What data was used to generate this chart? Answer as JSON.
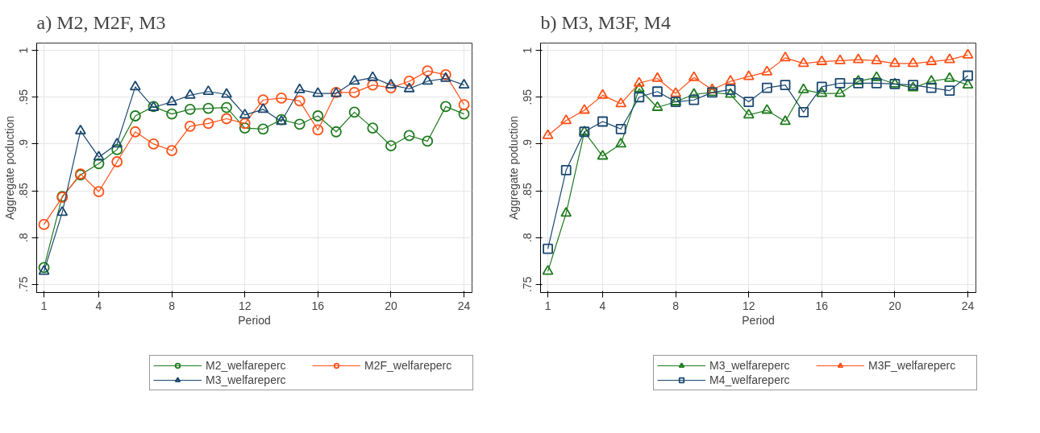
{
  "chart_data": [
    {
      "type": "line",
      "title": "a) M2, M2F, M3",
      "xlabel": "Period",
      "ylabel": "Aggregate poduction",
      "x": [
        1,
        2,
        3,
        4,
        5,
        6,
        7,
        8,
        9,
        10,
        11,
        12,
        13,
        14,
        15,
        16,
        17,
        18,
        19,
        20,
        21,
        22,
        23,
        24
      ],
      "xlim": [
        0.6,
        24.44
      ],
      "xticks": [
        1,
        4,
        8,
        12,
        16,
        20,
        24
      ],
      "ylim": [
        0.7413,
        1.0078
      ],
      "yticks": [
        {
          "value": 0.75,
          "label": ".75"
        },
        {
          "value": 0.8,
          "label": ".8"
        },
        {
          "value": 0.85,
          "label": ".85"
        },
        {
          "value": 0.9,
          "label": ".9"
        },
        {
          "value": 0.95,
          "label": ".95"
        },
        {
          "value": 1,
          "label": "1"
        }
      ],
      "grid": true,
      "legend": "bottom",
      "series": [
        {
          "name": "M2_welfareperc",
          "color": "#1e7b1e",
          "marker": "circle",
          "values": [
            0.768,
            0.844,
            0.867,
            0.879,
            0.894,
            0.93,
            0.94,
            0.932,
            0.937,
            0.938,
            0.939,
            0.917,
            0.916,
            0.926,
            0.921,
            0.93,
            0.913,
            0.934,
            0.917,
            0.898,
            0.909,
            0.903,
            0.94,
            0.932
          ]
        },
        {
          "name": "M2F_welfareperc",
          "color": "#ff4f14",
          "marker": "circle",
          "values": [
            0.814,
            0.843,
            0.868,
            0.849,
            0.881,
            0.913,
            0.9,
            0.893,
            0.919,
            0.922,
            0.927,
            0.922,
            0.947,
            0.949,
            0.946,
            0.915,
            0.955,
            0.955,
            0.963,
            0.96,
            0.967,
            0.978,
            0.974,
            0.942
          ]
        },
        {
          "name": "M3_welfareperc",
          "color": "#1a476f",
          "marker": "triangle",
          "values": [
            0.764,
            0.827,
            0.914,
            0.886,
            0.9,
            0.961,
            0.939,
            0.945,
            0.952,
            0.956,
            0.953,
            0.931,
            0.937,
            0.924,
            0.958,
            0.954,
            0.954,
            0.967,
            0.971,
            0.963,
            0.959,
            0.967,
            0.97,
            0.963
          ]
        }
      ]
    },
    {
      "type": "line",
      "title": "b) M3, M3F, M4",
      "xlabel": "Period",
      "ylabel": "Aggregate poduction",
      "x": [
        1,
        2,
        3,
        4,
        5,
        6,
        7,
        8,
        9,
        10,
        11,
        12,
        13,
        14,
        15,
        16,
        17,
        18,
        19,
        20,
        21,
        22,
        23,
        24
      ],
      "xlim": [
        0.6,
        24.44
      ],
      "xticks": [
        1,
        4,
        8,
        12,
        16,
        20,
        24
      ],
      "ylim": [
        0.7413,
        1.0078
      ],
      "yticks": [
        {
          "value": 0.75,
          "label": ".75"
        },
        {
          "value": 0.8,
          "label": ".8"
        },
        {
          "value": 0.85,
          "label": ".85"
        },
        {
          "value": 0.9,
          "label": ".9"
        },
        {
          "value": 0.95,
          "label": ".95"
        },
        {
          "value": 1,
          "label": "1"
        }
      ],
      "grid": true,
      "legend": "bottom",
      "series": [
        {
          "name": "M3_welfareperc",
          "color": "#1e7b1e",
          "marker": "triangle",
          "values": [
            0.764,
            0.826,
            0.913,
            0.887,
            0.9,
            0.959,
            0.939,
            0.945,
            0.953,
            0.955,
            0.953,
            0.931,
            0.936,
            0.924,
            0.958,
            0.954,
            0.954,
            0.967,
            0.971,
            0.964,
            0.96,
            0.967,
            0.97,
            0.963
          ]
        },
        {
          "name": "M3F_welfareperc",
          "color": "#ff4f14",
          "marker": "triangle",
          "values": [
            0.909,
            0.925,
            0.936,
            0.952,
            0.943,
            0.965,
            0.97,
            0.954,
            0.971,
            0.958,
            0.967,
            0.972,
            0.977,
            0.992,
            0.986,
            0.988,
            0.989,
            0.99,
            0.989,
            0.986,
            0.986,
            0.988,
            0.99,
            0.995
          ]
        },
        {
          "name": "M4_welfareperc",
          "color": "#1a476f",
          "marker": "square",
          "values": [
            0.788,
            0.872,
            0.913,
            0.924,
            0.916,
            0.95,
            0.956,
            0.945,
            0.947,
            0.955,
            0.958,
            0.945,
            0.96,
            0.963,
            0.934,
            0.961,
            0.965,
            0.965,
            0.965,
            0.964,
            0.963,
            0.96,
            0.957,
            0.973
          ]
        }
      ]
    }
  ]
}
